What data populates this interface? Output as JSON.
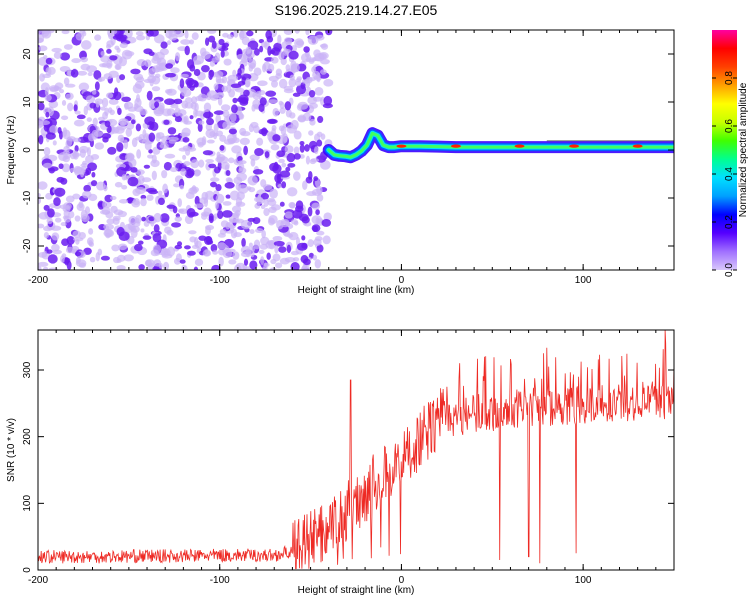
{
  "title": "S196.2025.219.14.27.E05",
  "colors": {
    "signal_line": "#ee2a24",
    "spec_scatter": "#6a1cf0",
    "spec_scatter_light": "#cbb4f6",
    "colormap": [
      "#ffffff",
      "#d9c8fb",
      "#a070ff",
      "#5500ff",
      "#0000ff",
      "#00a0ff",
      "#00e0ff",
      "#00ff90",
      "#40ff00",
      "#c8ff00",
      "#ffff00",
      "#ffa000",
      "#ff4000",
      "#ff0000",
      "#ff00a0"
    ]
  },
  "chart_data": [
    {
      "type": "heatmap",
      "title": "S196.2025.219.14.27.E05",
      "xlabel": "Height of straight line (km)",
      "ylabel": "Frequency (Hz)",
      "xlim": [
        -200,
        150
      ],
      "ylim": [
        -25,
        25
      ],
      "x_ticks": [
        -200,
        -100,
        0,
        100
      ],
      "y_ticks": [
        -20,
        -10,
        0,
        10,
        20
      ],
      "x_tick_labels": [
        "-200",
        "-100",
        "0",
        "100"
      ],
      "y_tick_labels": [
        "-20",
        "-10",
        "0",
        "10",
        "20"
      ],
      "noise_region_x": [
        -200,
        -40
      ],
      "ridge": {
        "x": [
          -40,
          -37,
          -34,
          -31,
          -28,
          -25,
          -22,
          -19,
          -16,
          -13,
          -10,
          -7,
          -4,
          0,
          10,
          20,
          30,
          40,
          50,
          60,
          70,
          80,
          90,
          100,
          110,
          120,
          130,
          140,
          150
        ],
        "frequency": [
          0,
          -1,
          -1.2,
          -1.3,
          -1.5,
          -1.0,
          -0.2,
          1.0,
          3.5,
          3.0,
          1.0,
          0.6,
          0.6,
          0.8,
          0.8,
          0.7,
          0.6,
          0.6,
          0.6,
          0.6,
          0.6,
          0.6,
          0.6,
          0.6,
          0.6,
          0.6,
          0.6,
          0.6,
          0.6
        ]
      },
      "grid": false,
      "colorbar": {
        "label": "Normalized spectral amplitude",
        "range": [
          0,
          1
        ],
        "ticks": [
          0.0,
          0.2,
          0.4,
          0.6,
          0.8
        ],
        "tick_labels": [
          "0.0",
          "0.2",
          "0.4",
          "0.6",
          "0.8"
        ]
      }
    },
    {
      "type": "line",
      "xlabel": "Height of straight line (km)",
      "ylabel": "SNR (10 * v/v)",
      "xlim": [
        -200,
        150
      ],
      "ylim": [
        0,
        360
      ],
      "x_ticks": [
        -200,
        -100,
        0,
        100
      ],
      "y_ticks": [
        0,
        100,
        200,
        300
      ],
      "x_tick_labels": [
        "-200",
        "-100",
        "0",
        "100"
      ],
      "y_tick_labels": [
        "0",
        "100",
        "200",
        "300"
      ],
      "grid": false,
      "series": [
        {
          "x": [
            -200,
            -180,
            -160,
            -140,
            -120,
            -100,
            -80,
            -70,
            -60,
            -55,
            -50,
            -45,
            -40,
            -35,
            -30,
            -25,
            -20,
            -15,
            -10,
            -5,
            0,
            5,
            10,
            15,
            20,
            25,
            30,
            35,
            40,
            45,
            50,
            55,
            60,
            65,
            70,
            75,
            80,
            85,
            90,
            95,
            100,
            105,
            110,
            115,
            120,
            125,
            130,
            135,
            140,
            145,
            150
          ],
          "values": [
            20,
            20,
            20,
            21,
            21,
            22,
            22,
            22,
            28,
            35,
            45,
            55,
            60,
            70,
            90,
            100,
            115,
            130,
            140,
            150,
            165,
            180,
            195,
            210,
            220,
            225,
            230,
            232,
            235,
            237,
            238,
            240,
            240,
            242,
            243,
            245,
            245,
            245,
            247,
            248,
            248,
            249,
            250,
            250,
            251,
            252,
            252,
            253,
            254,
            255,
            255
          ]
        }
      ],
      "spikes": [
        {
          "x": -28,
          "values": [
            220,
            285
          ]
        },
        {
          "x": 54,
          "value": 15
        },
        {
          "x": 70,
          "value": 20
        },
        {
          "x": 76,
          "value": 10
        },
        {
          "x": 96,
          "value": 25
        }
      ],
      "max_peak": {
        "x": 145,
        "value": 360
      }
    }
  ]
}
